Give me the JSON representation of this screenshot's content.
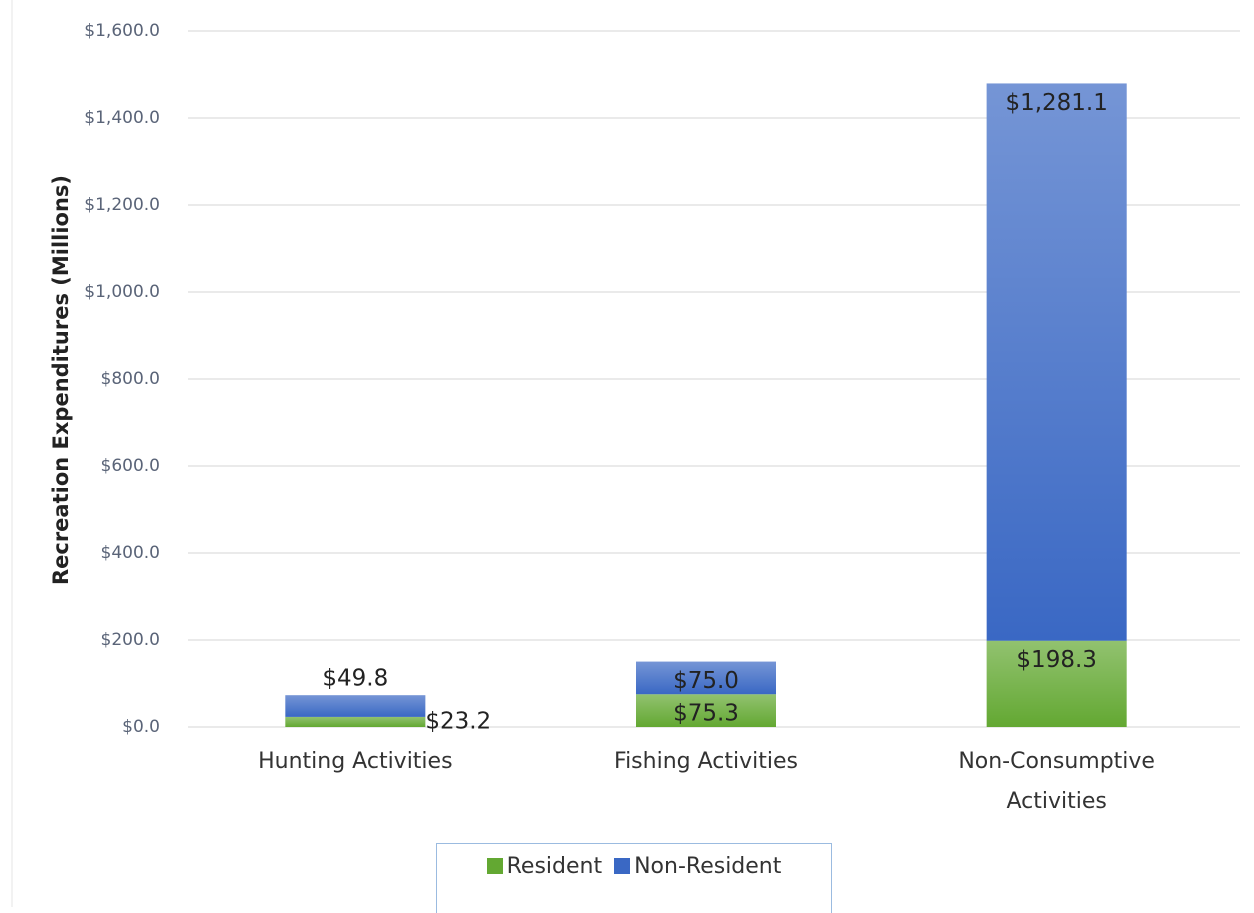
{
  "chart_data": {
    "type": "stacked_bar",
    "y_label": "Recreation Expenditures (Millions)",
    "categories": [
      "Hunting Activities",
      "Fishing Activities",
      "Non-Consumptive Activities"
    ],
    "series": [
      {
        "name": "Resident",
        "color": "#63a832",
        "values": [
          23.2,
          75.3,
          198.3
        ],
        "value_labels": [
          "$23.2",
          "$75.3",
          "$198.3"
        ]
      },
      {
        "name": "Non-Resident",
        "color": "#3a68c4",
        "values": [
          49.8,
          75.0,
          1281.1
        ],
        "value_labels": [
          "$49.8",
          "$75.0",
          "$1,281.1"
        ]
      }
    ],
    "ylim": [
      0,
      1600
    ],
    "yticks": [
      {
        "value": 0,
        "label": "$0.0"
      },
      {
        "value": 200,
        "label": "$200.0"
      },
      {
        "value": 400,
        "label": "$400.0"
      },
      {
        "value": 600,
        "label": "$600.0"
      },
      {
        "value": 800,
        "label": "$800.0"
      },
      {
        "value": 1000,
        "label": "$1,000.0"
      },
      {
        "value": 1200,
        "label": "$1,200.0"
      },
      {
        "value": 1400,
        "label": "$1,400.0"
      },
      {
        "value": 1600,
        "label": "$1,600.0"
      }
    ],
    "grid": true,
    "legend": "bottom"
  }
}
